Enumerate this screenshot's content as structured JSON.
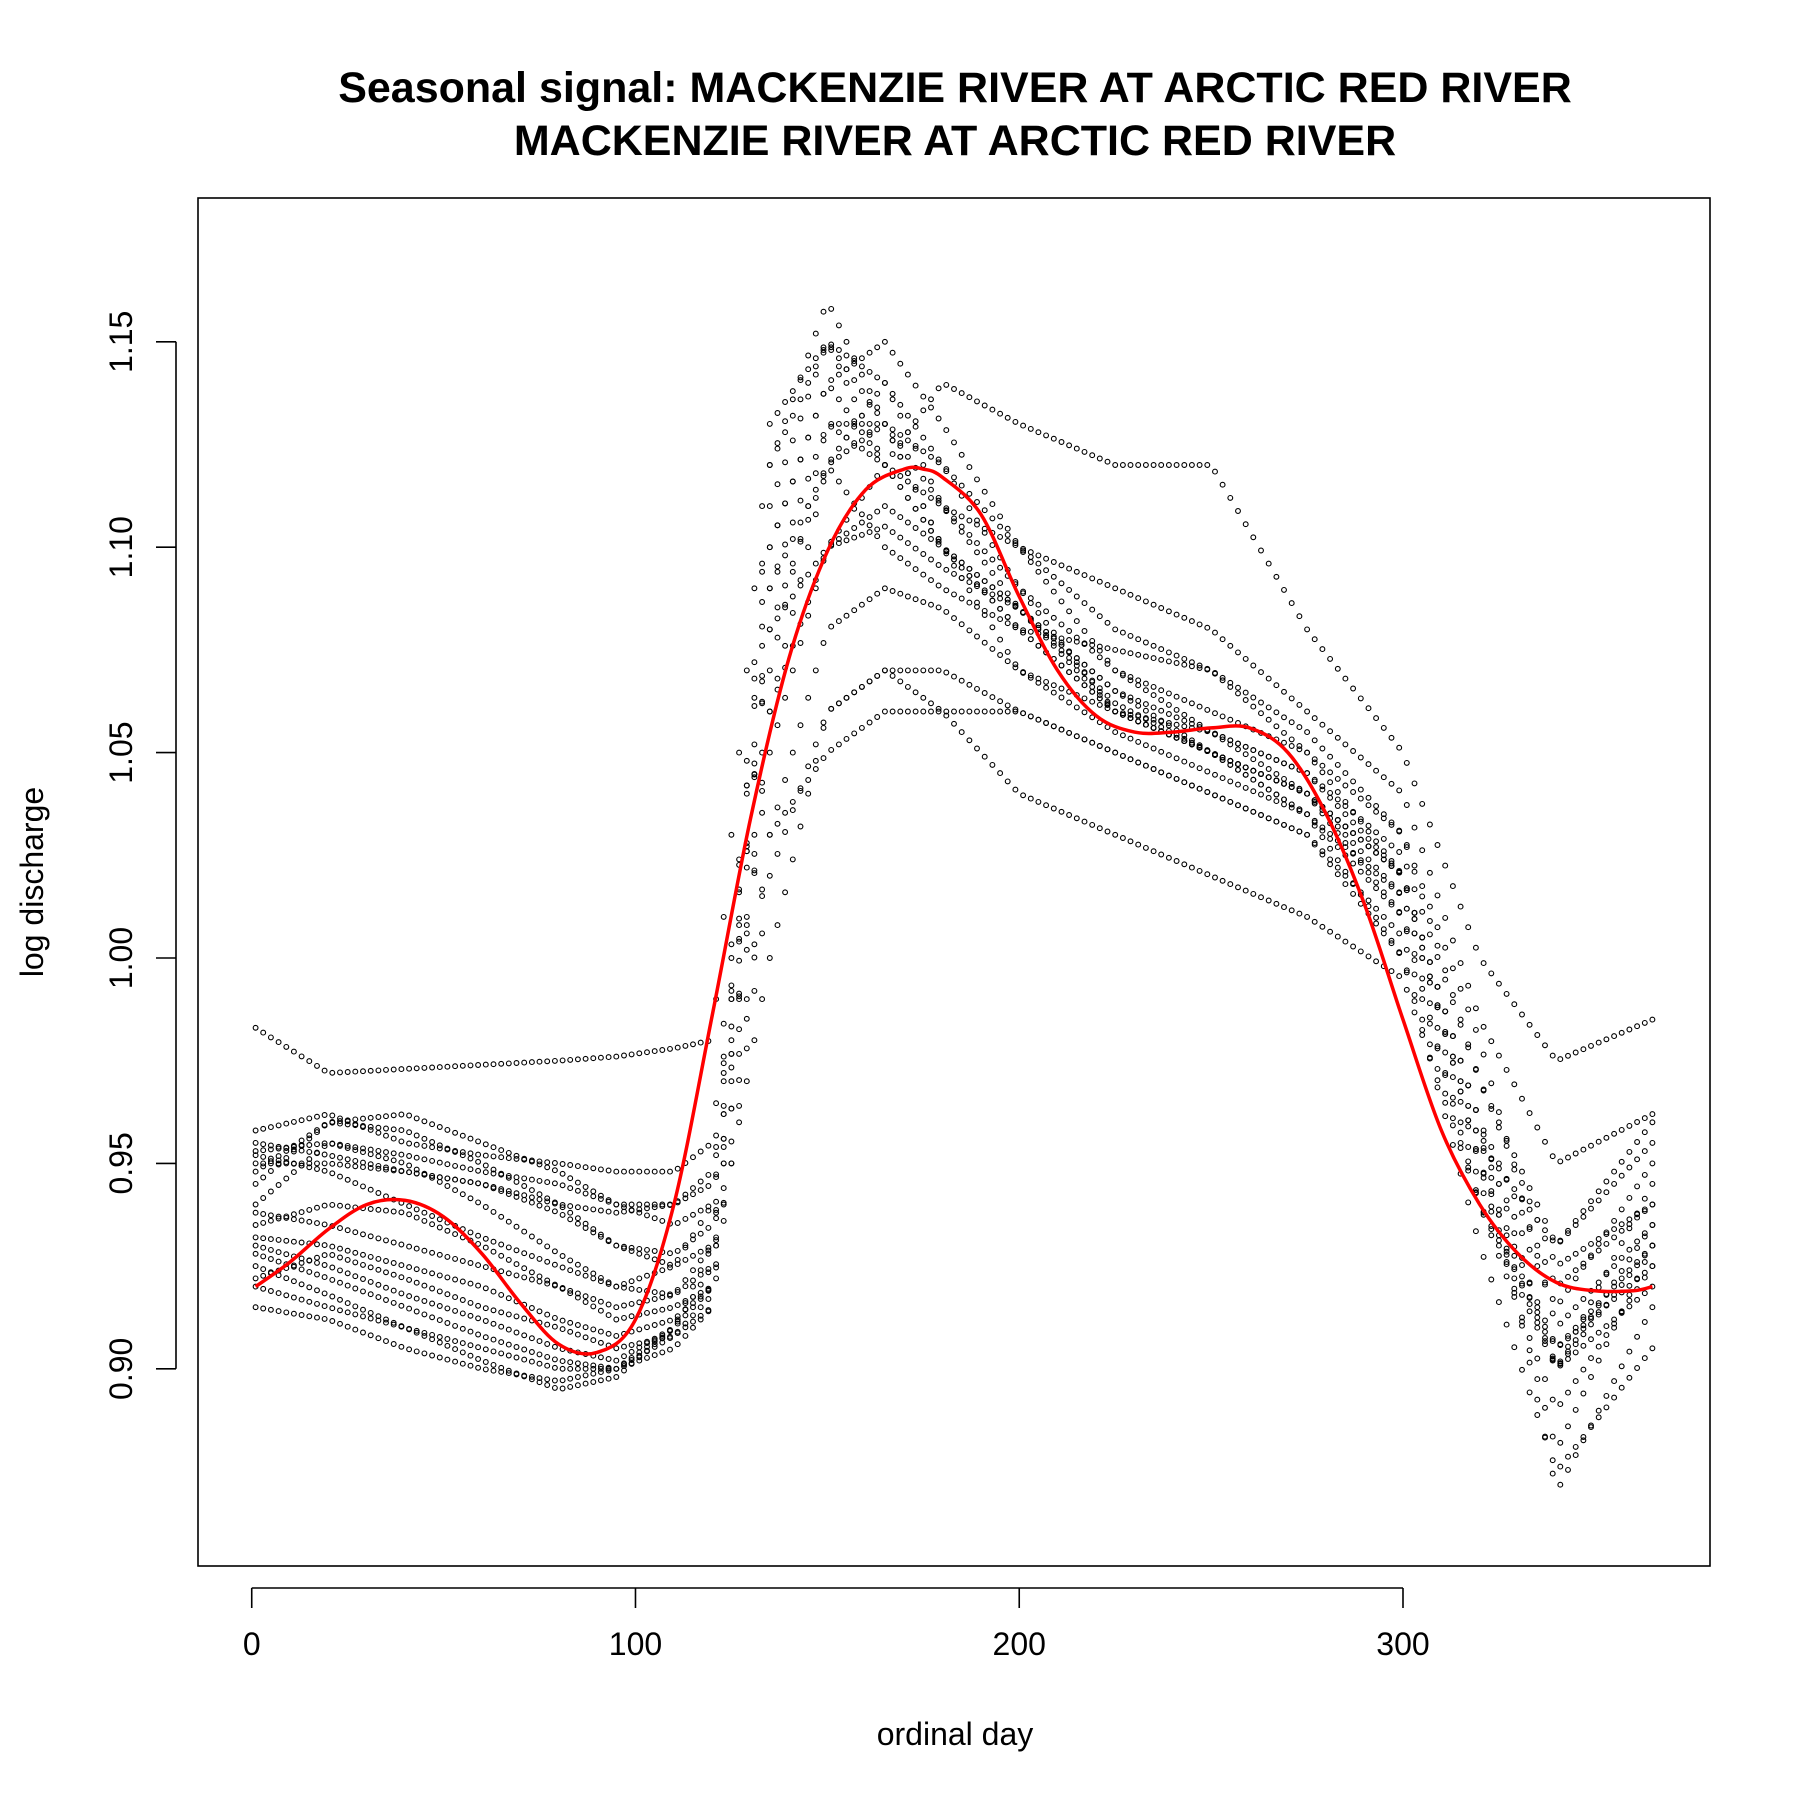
{
  "chart_data": {
    "type": "scatter",
    "title": "Seasonal signal: MACKENZIE RIVER AT ARCTIC RED RIVER",
    "subtitle": "MACKENZIE RIVER AT ARCTIC RED RIVER",
    "xlabel": "ordinal day",
    "ylabel": "log discharge",
    "xlim": [
      -14,
      380
    ],
    "ylim": [
      0.852,
      1.185
    ],
    "xticks": [
      0,
      100,
      200,
      300
    ],
    "yticks": [
      0.9,
      0.95,
      1.0,
      1.05,
      1.1,
      1.15
    ],
    "xtick_labels": [
      "0",
      "100",
      "200",
      "300"
    ],
    "ytick_labels": [
      "0.90",
      "0.95",
      "1.00",
      "1.05",
      "1.10",
      "1.15"
    ],
    "grid": false,
    "legend": "none",
    "colors": {
      "points": "#000000",
      "fit": "#ff0000"
    },
    "series": [
      {
        "kind": "points",
        "marker": "open-circle",
        "years": [
          {
            "x": [
              1,
              20,
              40,
              60,
              80,
              95,
              110,
              120,
              135,
              150,
              165,
              180,
              200,
              225,
              250,
              275,
              300,
              320,
              340,
              365
            ],
            "y": [
              0.983,
              0.972,
              0.973,
              0.974,
              0.975,
              0.976,
              0.978,
              0.98,
              1.13,
              1.15,
              1.12,
              1.1,
              1.085,
              1.065,
              1.05,
              1.035,
              1.015,
              0.955,
              0.93,
              0.955
            ]
          },
          {
            "x": [
              1,
              20,
              40,
              60,
              80,
              95,
              110,
              120,
              135,
              150,
              165,
              180,
              200,
              225,
              250,
              275,
              300,
              320,
              340,
              365
            ],
            "y": [
              0.958,
              0.962,
              0.955,
              0.952,
              0.95,
              0.948,
              0.948,
              0.955,
              1.1,
              1.14,
              1.15,
              1.13,
              1.1,
              1.07,
              1.055,
              1.045,
              1.025,
              0.97,
              0.925,
              0.94
            ]
          },
          {
            "x": [
              1,
              20,
              40,
              60,
              80,
              95,
              110,
              120,
              135,
              150,
              165,
              180,
              200,
              225,
              250,
              275,
              300,
              320,
              340,
              365
            ],
            "y": [
              0.955,
              0.952,
              0.948,
              0.945,
              0.94,
              0.938,
              0.94,
              0.948,
              1.08,
              1.12,
              1.13,
              1.12,
              1.09,
              1.06,
              1.05,
              1.04,
              1.02,
              0.96,
              0.9,
              0.935
            ]
          },
          {
            "x": [
              1,
              20,
              40,
              60,
              80,
              95,
              110,
              120,
              135,
              150,
              165,
              180,
              200,
              225,
              250,
              275,
              300,
              320,
              340,
              365
            ],
            "y": [
              0.952,
              0.948,
              0.94,
              0.932,
              0.925,
              0.92,
              0.925,
              0.94,
              1.05,
              1.1,
              1.11,
              1.1,
              1.08,
              1.06,
              1.05,
              1.04,
              1.02,
              0.95,
              0.88,
              0.93
            ]
          },
          {
            "x": [
              1,
              20,
              40,
              60,
              80,
              95,
              110,
              120,
              135,
              150,
              165,
              180,
              200,
              225,
              250,
              275,
              300,
              320,
              340,
              365
            ],
            "y": [
              0.938,
              0.935,
              0.93,
              0.925,
              0.92,
              0.915,
              0.918,
              0.93,
              1.03,
              1.08,
              1.09,
              1.085,
              1.07,
              1.055,
              1.045,
              1.035,
              1.01,
              0.94,
              0.89,
              0.925
            ]
          },
          {
            "x": [
              1,
              20,
              40,
              60,
              80,
              95,
              110,
              120,
              135,
              150,
              165,
              180,
              200,
              225,
              250,
              275,
              300,
              320,
              340,
              365
            ],
            "y": [
              0.93,
              0.925,
              0.918,
              0.912,
              0.905,
              0.902,
              0.91,
              0.925,
              1.0,
              1.06,
              1.07,
              1.07,
              1.06,
              1.05,
              1.04,
              1.03,
              1.005,
              0.945,
              0.9,
              0.92
            ]
          },
          {
            "x": [
              1,
              20,
              40,
              60,
              80,
              95,
              110,
              120,
              135,
              150,
              165,
              180,
              200,
              225,
              250,
              275,
              300,
              320,
              340,
              365
            ],
            "y": [
              0.925,
              0.918,
              0.91,
              0.902,
              0.895,
              0.898,
              0.91,
              0.93,
              1.06,
              1.12,
              1.14,
              1.12,
              1.1,
              1.08,
              1.07,
              1.05,
              1.02,
              0.96,
              0.87,
              0.915
            ]
          },
          {
            "x": [
              1,
              20,
              40,
              60,
              80,
              95,
              110,
              120,
              135,
              150,
              165,
              180,
              200,
              225,
              250,
              275,
              300,
              320,
              340,
              365
            ],
            "y": [
              0.915,
              0.912,
              0.905,
              0.9,
              0.897,
              0.9,
              0.91,
              0.92,
              1.09,
              1.13,
              1.12,
              1.11,
              1.09,
              1.07,
              1.06,
              1.05,
              1.03,
              0.98,
              0.91,
              0.935
            ]
          },
          {
            "x": [
              1,
              20,
              40,
              60,
              80,
              95,
              110,
              120,
              135,
              150,
              165,
              180,
              200,
              225,
              250,
              275,
              300,
              320,
              340,
              365
            ],
            "y": [
              0.94,
              0.955,
              0.95,
              0.94,
              0.928,
              0.92,
              0.918,
              0.925,
              1.12,
              1.16,
              1.13,
              1.1,
              1.08,
              1.06,
              1.055,
              1.045,
              1.02,
              0.95,
              0.9,
              0.945
            ]
          },
          {
            "x": [
              1,
              20,
              40,
              60,
              80,
              95,
              110,
              120,
              135,
              150,
              165,
              180,
              200,
              225,
              250,
              275,
              300,
              320,
              340,
              365
            ],
            "y": [
              0.945,
              0.96,
              0.958,
              0.95,
              0.94,
              0.93,
              0.928,
              0.935,
              1.11,
              1.15,
              1.14,
              1.11,
              1.085,
              1.062,
              1.05,
              1.04,
              1.015,
              0.955,
              0.915,
              0.95
            ]
          },
          {
            "x": [
              1,
              20,
              40,
              60,
              80,
              95,
              110,
              120,
              135,
              150,
              165,
              180,
              200,
              225,
              250,
              275,
              300,
              320,
              340,
              365
            ],
            "y": [
              0.935,
              0.94,
              0.938,
              0.93,
              0.92,
              0.912,
              0.915,
              0.92,
              1.07,
              1.13,
              1.13,
              1.1,
              1.07,
              1.06,
              1.05,
              1.04,
              1.02,
              0.96,
              0.92,
              0.94
            ]
          },
          {
            "x": [
              1,
              20,
              40,
              60,
              80,
              95,
              110,
              120,
              135,
              150,
              165,
              180,
              200,
              225,
              250,
              275,
              300,
              320,
              340,
              365
            ],
            "y": [
              0.922,
              0.928,
              0.922,
              0.915,
              0.91,
              0.905,
              0.908,
              0.915,
              1.06,
              1.1,
              1.105,
              1.095,
              1.085,
              1.06,
              1.05,
              1.035,
              1.0,
              0.93,
              0.875,
              0.905
            ]
          },
          {
            "x": [
              1,
              20,
              40,
              60,
              80,
              95,
              110,
              120,
              135,
              150,
              165,
              180,
              200,
              225,
              250,
              275,
              300,
              320,
              340,
              365
            ],
            "y": [
              0.95,
              0.95,
              0.948,
              0.945,
              0.938,
              0.93,
              0.925,
              0.93,
              1.09,
              1.12,
              1.1,
              1.09,
              1.08,
              1.075,
              1.07,
              1.055,
              1.03,
              0.97,
              0.93,
              0.96
            ]
          },
          {
            "x": [
              1,
              20,
              40,
              60,
              80,
              95,
              110,
              120,
              135,
              150,
              165,
              180,
              200,
              225,
              250,
              275,
              300,
              320,
              340,
              365
            ],
            "y": [
              0.932,
              0.93,
              0.925,
              0.92,
              0.912,
              0.908,
              0.912,
              0.92,
              1.1,
              1.14,
              1.12,
              1.1,
              1.085,
              1.065,
              1.055,
              1.04,
              1.01,
              0.95,
              0.905,
              0.93
            ]
          },
          {
            "x": [
              1,
              20,
              40,
              60,
              80,
              95,
              110,
              120,
              135,
              150,
              165,
              180,
              200,
              225,
              250,
              275,
              300,
              320,
              340,
              365
            ],
            "y": [
              0.928,
              0.922,
              0.915,
              0.908,
              0.902,
              0.9,
              0.908,
              0.918,
              1.03,
              1.05,
              1.06,
              1.06,
              1.06,
              1.05,
              1.04,
              1.03,
              1.0,
              0.94,
              0.905,
              0.925
            ]
          },
          {
            "x": [
              1,
              20,
              40,
              60,
              80,
              95,
              110,
              120,
              135,
              150,
              165,
              180,
              200,
              225,
              250,
              275,
              300,
              320,
              340,
              365
            ],
            "y": [
              0.948,
              0.96,
              0.962,
              0.955,
              0.948,
              0.94,
              0.935,
              0.94,
              1.12,
              1.15,
              1.13,
              1.11,
              1.1,
              1.09,
              1.08,
              1.06,
              1.04,
              0.985,
              0.95,
              0.962
            ]
          },
          {
            "x": [
              1,
              20,
              40,
              60,
              80,
              95,
              110,
              120,
              135,
              150,
              165,
              180,
              200,
              225,
              250,
              275,
              300,
              320,
              340,
              365
            ],
            "y": [
              0.92,
              0.915,
              0.91,
              0.905,
              0.9,
              0.9,
              0.905,
              0.915,
              1.02,
              1.06,
              1.07,
              1.06,
              1.04,
              1.03,
              1.02,
              1.01,
              0.995,
              0.94,
              0.9,
              0.93
            ]
          },
          {
            "x": [
              1,
              20,
              40,
              60,
              80,
              95,
              110,
              120,
              135,
              150,
              165,
              180,
              200,
              225,
              250,
              275,
              300,
              320,
              340,
              365
            ],
            "y": [
              0.953,
              0.955,
              0.952,
              0.948,
              0.945,
              0.94,
              0.94,
              0.945,
              1.08,
              1.1,
              1.12,
              1.14,
              1.13,
              1.12,
              1.12,
              1.08,
              1.05,
              1.0,
              0.975,
              0.985
            ]
          }
        ]
      },
      {
        "kind": "fit",
        "x": [
          1,
          10,
          20,
          30,
          40,
          50,
          60,
          70,
          80,
          90,
          100,
          110,
          120,
          130,
          140,
          150,
          160,
          170,
          175,
          180,
          190,
          200,
          210,
          220,
          230,
          240,
          250,
          260,
          270,
          280,
          290,
          300,
          310,
          320,
          330,
          340,
          350,
          360,
          365
        ],
        "y": [
          0.92,
          0.926,
          0.934,
          0.94,
          0.941,
          0.937,
          0.928,
          0.916,
          0.906,
          0.904,
          0.912,
          0.94,
          0.986,
          1.034,
          1.073,
          1.099,
          1.114,
          1.119,
          1.119,
          1.117,
          1.108,
          1.088,
          1.07,
          1.059,
          1.055,
          1.055,
          1.056,
          1.056,
          1.05,
          1.035,
          1.013,
          0.985,
          0.958,
          0.94,
          0.928,
          0.921,
          0.919,
          0.919,
          0.92
        ]
      }
    ]
  }
}
